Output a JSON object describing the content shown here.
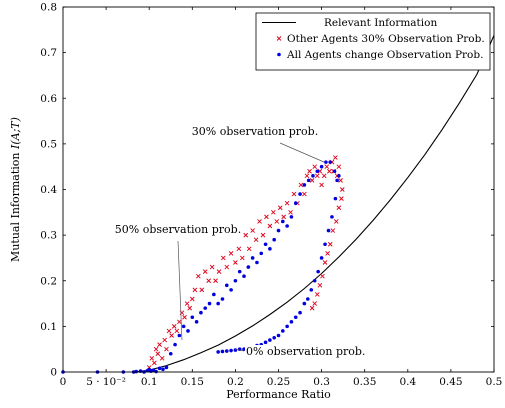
{
  "chart_data": {
    "type": "scatter",
    "xlabel": "Performance Ratio",
    "ylabel": "Mutual Information I(A;T)",
    "xlim": [
      0,
      0.5
    ],
    "ylim": [
      0,
      0.8
    ],
    "grid": false,
    "legend_position": "top-right",
    "x_ticks": [
      {
        "value": 0,
        "label": "0"
      },
      {
        "value": 0.05,
        "label": "5 · 10⁻²"
      },
      {
        "value": 0.1,
        "label": "0.1"
      },
      {
        "value": 0.15,
        "label": "0.15"
      },
      {
        "value": 0.2,
        "label": "0.2"
      },
      {
        "value": 0.25,
        "label": "0.25"
      },
      {
        "value": 0.3,
        "label": "0.3"
      },
      {
        "value": 0.35,
        "label": "0.35"
      },
      {
        "value": 0.4,
        "label": "0.4"
      },
      {
        "value": 0.45,
        "label": "0.45"
      },
      {
        "value": 0.5,
        "label": "0.5"
      }
    ],
    "y_ticks": [
      {
        "value": 0,
        "label": "0"
      },
      {
        "value": 0.1,
        "label": "0.1"
      },
      {
        "value": 0.2,
        "label": "0.2"
      },
      {
        "value": 0.3,
        "label": "0.3"
      },
      {
        "value": 0.4,
        "label": "0.4"
      },
      {
        "value": 0.5,
        "label": "0.5"
      },
      {
        "value": 0.6,
        "label": "0.6"
      },
      {
        "value": 0.7,
        "label": "0.7"
      },
      {
        "value": 0.8,
        "label": "0.8"
      }
    ],
    "series": [
      {
        "name": "Relevant Information",
        "kind": "line",
        "color": "#000000",
        "x": [
          0.083,
          0.1,
          0.12,
          0.14,
          0.16,
          0.18,
          0.2,
          0.22,
          0.24,
          0.26,
          0.28,
          0.3,
          0.32,
          0.34,
          0.36,
          0.38,
          0.4,
          0.42,
          0.44,
          0.46,
          0.48,
          0.5
        ],
        "y": [
          0.0,
          0.004,
          0.014,
          0.027,
          0.042,
          0.059,
          0.079,
          0.101,
          0.126,
          0.153,
          0.183,
          0.216,
          0.252,
          0.291,
          0.333,
          0.378,
          0.426,
          0.477,
          0.532,
          0.59,
          0.652,
          0.738
        ]
      },
      {
        "name": "Other Agents 30% Observation Prob.",
        "kind": "cross",
        "color": "#e0001a",
        "points": [
          [
            0.1,
            0.01
          ],
          [
            0.103,
            0.03
          ],
          [
            0.106,
            0.02
          ],
          [
            0.108,
            0.05
          ],
          [
            0.11,
            0.04
          ],
          [
            0.112,
            0.06
          ],
          [
            0.115,
            0.03
          ],
          [
            0.118,
            0.07
          ],
          [
            0.12,
            0.05
          ],
          [
            0.123,
            0.09
          ],
          [
            0.126,
            0.08
          ],
          [
            0.129,
            0.1
          ],
          [
            0.132,
            0.09
          ],
          [
            0.135,
            0.11
          ],
          [
            0.138,
            0.13
          ],
          [
            0.141,
            0.12
          ],
          [
            0.144,
            0.15
          ],
          [
            0.147,
            0.14
          ],
          [
            0.15,
            0.16
          ],
          [
            0.153,
            0.18
          ],
          [
            0.157,
            0.21
          ],
          [
            0.161,
            0.18
          ],
          [
            0.165,
            0.22
          ],
          [
            0.169,
            0.2
          ],
          [
            0.173,
            0.23
          ],
          [
            0.177,
            0.2
          ],
          [
            0.181,
            0.22
          ],
          [
            0.186,
            0.25
          ],
          [
            0.19,
            0.23
          ],
          [
            0.195,
            0.26
          ],
          [
            0.2,
            0.24
          ],
          [
            0.204,
            0.27
          ],
          [
            0.208,
            0.25
          ],
          [
            0.212,
            0.3
          ],
          [
            0.216,
            0.27
          ],
          [
            0.22,
            0.31
          ],
          [
            0.224,
            0.29
          ],
          [
            0.228,
            0.33
          ],
          [
            0.232,
            0.3
          ],
          [
            0.236,
            0.34
          ],
          [
            0.24,
            0.32
          ],
          [
            0.244,
            0.35
          ],
          [
            0.248,
            0.33
          ],
          [
            0.252,
            0.36
          ],
          [
            0.256,
            0.34
          ],
          [
            0.26,
            0.37
          ],
          [
            0.264,
            0.35
          ],
          [
            0.268,
            0.39
          ],
          [
            0.272,
            0.37
          ],
          [
            0.276,
            0.41
          ],
          [
            0.28,
            0.39
          ],
          [
            0.283,
            0.43
          ],
          [
            0.286,
            0.44
          ],
          [
            0.289,
            0.42
          ],
          [
            0.292,
            0.45
          ],
          [
            0.295,
            0.43
          ],
          [
            0.298,
            0.44
          ],
          [
            0.3,
            0.41
          ],
          [
            0.303,
            0.43
          ],
          [
            0.306,
            0.45
          ],
          [
            0.309,
            0.44
          ],
          [
            0.312,
            0.46
          ],
          [
            0.314,
            0.44
          ],
          [
            0.316,
            0.47
          ],
          [
            0.318,
            0.43
          ],
          [
            0.32,
            0.45
          ],
          [
            0.322,
            0.42
          ],
          [
            0.324,
            0.4
          ],
          [
            0.323,
            0.38
          ],
          [
            0.32,
            0.36
          ],
          [
            0.317,
            0.33
          ],
          [
            0.313,
            0.31
          ],
          [
            0.31,
            0.28
          ],
          [
            0.307,
            0.26
          ],
          [
            0.304,
            0.24
          ],
          [
            0.301,
            0.21
          ],
          [
            0.298,
            0.19
          ],
          [
            0.295,
            0.17
          ],
          [
            0.292,
            0.15
          ],
          [
            0.289,
            0.14
          ]
        ]
      },
      {
        "name": "All Agents change Observation Prob.",
        "kind": "dot",
        "color": "#0000e0",
        "points": [
          [
            0.0,
            0.0
          ],
          [
            0.04,
            0.0
          ],
          [
            0.07,
            0.0
          ],
          [
            0.082,
            0.0
          ],
          [
            0.085,
            0.001
          ],
          [
            0.09,
            0.002
          ],
          [
            0.094,
            0.0
          ],
          [
            0.098,
            0.003
          ],
          [
            0.1,
            0.005
          ],
          [
            0.102,
            0.002
          ],
          [
            0.105,
            0.004
          ],
          [
            0.108,
            0.001
          ],
          [
            0.112,
            0.008
          ],
          [
            0.116,
            0.006
          ],
          [
            0.12,
            0.01
          ],
          [
            0.125,
            0.04
          ],
          [
            0.13,
            0.06
          ],
          [
            0.135,
            0.08
          ],
          [
            0.14,
            0.1
          ],
          [
            0.145,
            0.09
          ],
          [
            0.15,
            0.12
          ],
          [
            0.155,
            0.11
          ],
          [
            0.16,
            0.13
          ],
          [
            0.165,
            0.14
          ],
          [
            0.17,
            0.15
          ],
          [
            0.175,
            0.17
          ],
          [
            0.18,
            0.15
          ],
          [
            0.185,
            0.16
          ],
          [
            0.19,
            0.19
          ],
          [
            0.195,
            0.18
          ],
          [
            0.2,
            0.2
          ],
          [
            0.205,
            0.22
          ],
          [
            0.21,
            0.21
          ],
          [
            0.215,
            0.23
          ],
          [
            0.22,
            0.25
          ],
          [
            0.225,
            0.24
          ],
          [
            0.23,
            0.26
          ],
          [
            0.235,
            0.28
          ],
          [
            0.24,
            0.27
          ],
          [
            0.245,
            0.29
          ],
          [
            0.25,
            0.31
          ],
          [
            0.255,
            0.33
          ],
          [
            0.26,
            0.32
          ],
          [
            0.265,
            0.34
          ],
          [
            0.27,
            0.37
          ],
          [
            0.275,
            0.39
          ],
          [
            0.28,
            0.41
          ],
          [
            0.285,
            0.42
          ],
          [
            0.29,
            0.43
          ],
          [
            0.295,
            0.44
          ],
          [
            0.3,
            0.45
          ],
          [
            0.305,
            0.46
          ],
          [
            0.31,
            0.46
          ],
          [
            0.315,
            0.44
          ],
          [
            0.318,
            0.42
          ],
          [
            0.32,
            0.43
          ],
          [
            0.316,
            0.38
          ],
          [
            0.312,
            0.34
          ],
          [
            0.308,
            0.31
          ],
          [
            0.304,
            0.28
          ],
          [
            0.3,
            0.25
          ],
          [
            0.296,
            0.22
          ],
          [
            0.292,
            0.2
          ],
          [
            0.288,
            0.18
          ],
          [
            0.284,
            0.16
          ],
          [
            0.28,
            0.15
          ],
          [
            0.275,
            0.13
          ],
          [
            0.27,
            0.12
          ],
          [
            0.265,
            0.11
          ],
          [
            0.26,
            0.1
          ],
          [
            0.255,
            0.09
          ],
          [
            0.25,
            0.08
          ],
          [
            0.245,
            0.075
          ],
          [
            0.24,
            0.07
          ],
          [
            0.235,
            0.065
          ],
          [
            0.23,
            0.06
          ],
          [
            0.225,
            0.058
          ],
          [
            0.22,
            0.055
          ],
          [
            0.215,
            0.052
          ],
          [
            0.21,
            0.05
          ],
          [
            0.205,
            0.05
          ],
          [
            0.2,
            0.048
          ],
          [
            0.195,
            0.047
          ],
          [
            0.19,
            0.046
          ],
          [
            0.185,
            0.045
          ],
          [
            0.18,
            0.044
          ]
        ]
      }
    ],
    "annotations": [
      {
        "text": "30% observation prob.",
        "points_to": [
          0.303,
          0.46
        ]
      },
      {
        "text": "50% observation prob.",
        "points_to": [
          0.138,
          0.07
        ]
      },
      {
        "text": "0% observation prob.",
        "points_to": [
          0.2,
          0.05
        ]
      }
    ]
  }
}
